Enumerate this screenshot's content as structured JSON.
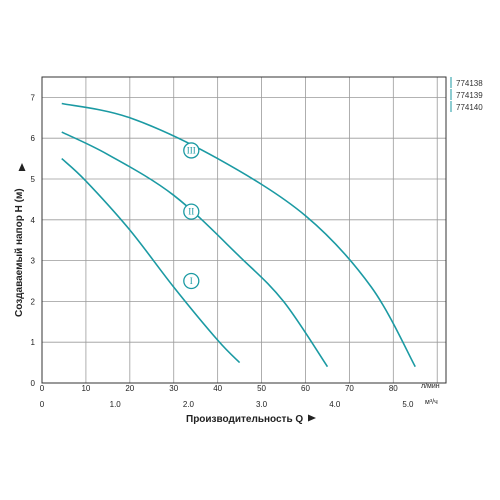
{
  "chart_data": {
    "type": "line",
    "ylabel": "Создаваемый напор H (м)",
    "xlabel": "Производительность Q",
    "y_range": [
      0,
      7.5
    ],
    "y_ticks": [
      "0",
      "1",
      "2",
      "3",
      "4",
      "5",
      "6",
      "7"
    ],
    "x_lpm_range": [
      0,
      92
    ],
    "x_lpm_ticks": [
      "0",
      "10",
      "20",
      "30",
      "40",
      "50",
      "60",
      "70",
      "80"
    ],
    "x_lpm_unit": "л/мин",
    "x_m3h_ticks": [
      "0",
      "1.0",
      "2.0",
      "3.0",
      "4.0",
      "5.0"
    ],
    "x_m3h_unit": "м³/ч",
    "grid": true,
    "legend_position": "top-right",
    "legend": [
      "774138",
      "774139",
      "774140"
    ],
    "series_color": "#1b9aa3",
    "series": [
      {
        "name": "I",
        "label_at": [
          34,
          2.5
        ],
        "points": [
          [
            4.5,
            5.5
          ],
          [
            10,
            4.95
          ],
          [
            20,
            3.75
          ],
          [
            30,
            2.35
          ],
          [
            40,
            1.05
          ],
          [
            45,
            0.5
          ]
        ]
      },
      {
        "name": "II",
        "label_at": [
          34,
          4.2
        ],
        "points": [
          [
            4.5,
            6.15
          ],
          [
            15,
            5.6
          ],
          [
            30,
            4.6
          ],
          [
            45,
            3.1
          ],
          [
            55,
            2.0
          ],
          [
            65,
            0.4
          ]
        ]
      },
      {
        "name": "III",
        "label_at": [
          34,
          5.7
        ],
        "points": [
          [
            4.5,
            6.85
          ],
          [
            20,
            6.5
          ],
          [
            40,
            5.5
          ],
          [
            60,
            4.1
          ],
          [
            75,
            2.35
          ],
          [
            85,
            0.4
          ]
        ]
      }
    ]
  }
}
